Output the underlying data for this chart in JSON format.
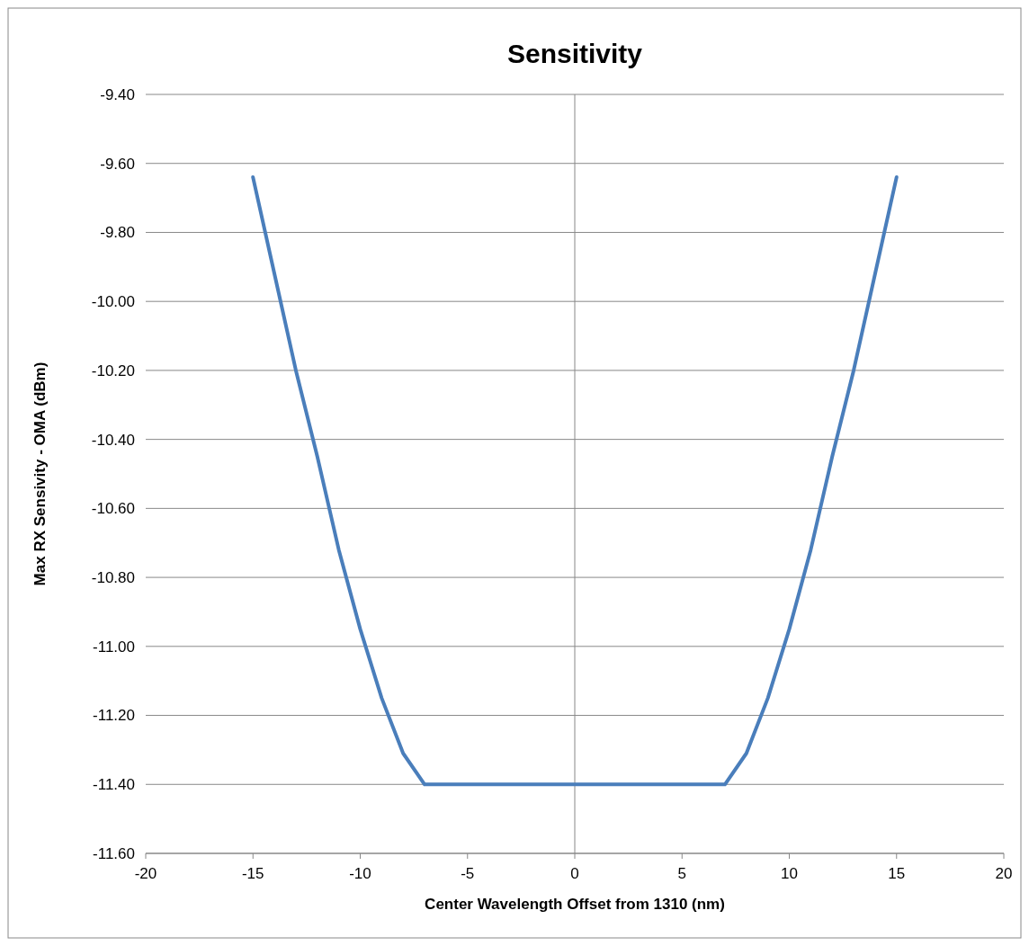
{
  "chart_data": {
    "type": "line",
    "title": "Sensitivity",
    "xlabel": "Center Wavelength Offset from 1310 (nm)",
    "ylabel": "Max RX Sensivity - OMA (dBm)",
    "x": [
      -15,
      -14,
      -13,
      -12,
      -11,
      -10,
      -9,
      -8,
      -7,
      7,
      8,
      9,
      10,
      11,
      12,
      13,
      14,
      15
    ],
    "series": [
      {
        "color": "#4a7ebb",
        "values": [
          -9.64,
          -9.92,
          -10.2,
          -10.45,
          -10.72,
          -10.95,
          -11.15,
          -11.31,
          -11.4,
          -11.4,
          -11.31,
          -11.15,
          -10.95,
          -10.72,
          -10.45,
          -10.2,
          -9.92,
          -9.64
        ]
      }
    ],
    "xlim": [
      -20,
      20
    ],
    "xticks": [
      -20,
      -15,
      -10,
      -5,
      0,
      5,
      10,
      15,
      20
    ],
    "ylim": [
      -11.6,
      -9.4
    ],
    "yticks": [
      {
        "value": -11.6,
        "label": "-11.60"
      },
      {
        "value": -11.4,
        "label": "-11.40"
      },
      {
        "value": -11.2,
        "label": "-11.20"
      },
      {
        "value": -11,
        "label": "-11.00"
      },
      {
        "value": -10.8,
        "label": "-10.80"
      },
      {
        "value": -10.6,
        "label": "-10.60"
      },
      {
        "value": -10.4,
        "label": "-10.40"
      },
      {
        "value": -10.2,
        "label": "-10.20"
      },
      {
        "value": -10,
        "label": "-10.00"
      },
      {
        "value": -9.8,
        "label": "-9.80"
      },
      {
        "value": -9.6,
        "label": "-9.60"
      },
      {
        "value": -9.4,
        "label": "-9.40"
      }
    ],
    "ref_lines": [
      {
        "axis": "x",
        "value": 0,
        "color": "#888888"
      }
    ],
    "grid": "y",
    "marker": "none",
    "line_style": "solid"
  }
}
